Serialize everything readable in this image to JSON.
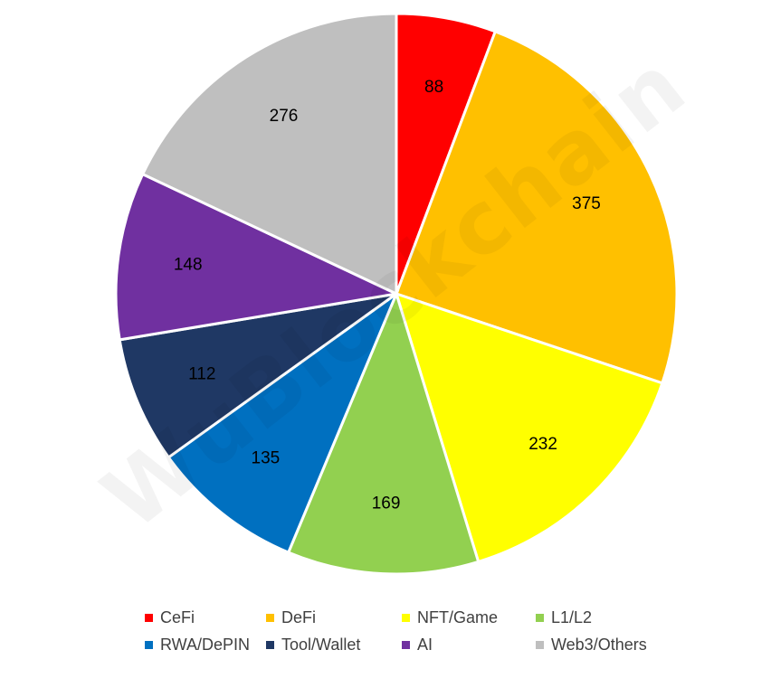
{
  "chart_data": {
    "type": "pie",
    "title": "",
    "start_angle_deg": 0,
    "direction": "clockwise",
    "data_labels_shown": true,
    "legend_position": "bottom",
    "slices": [
      {
        "label": "CeFi",
        "value": 88,
        "color": "#FF0000"
      },
      {
        "label": "DeFi",
        "value": 375,
        "color": "#FFC000"
      },
      {
        "label": "NFT/Game",
        "value": 232,
        "color": "#FFFF00"
      },
      {
        "label": "L1/L2",
        "value": 169,
        "color": "#92D050"
      },
      {
        "label": "RWA/DePIN",
        "value": 135,
        "color": "#0070C0"
      },
      {
        "label": "Tool/Wallet",
        "value": 112,
        "color": "#1F3864"
      },
      {
        "label": "AI",
        "value": 148,
        "color": "#7030A0"
      },
      {
        "label": "Web3/Others",
        "value": 276,
        "color": "#BFBFBF"
      }
    ]
  },
  "watermark": {
    "text": "WuBlockchain"
  }
}
